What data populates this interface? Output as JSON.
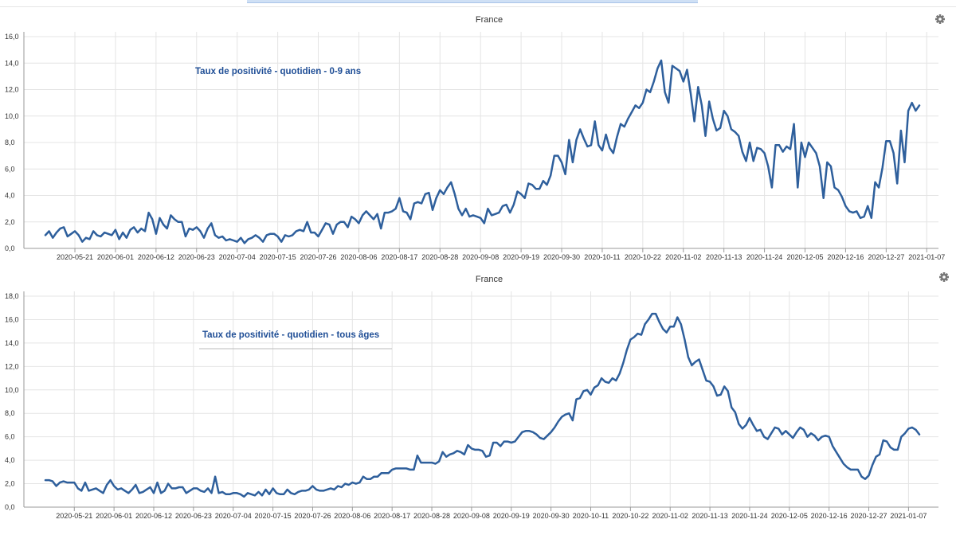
{
  "page": {
    "accent_color": "#2e5f9c",
    "annotation_color": "#1f4e96",
    "grid_color": "#e4e4e4"
  },
  "chart_data": [
    {
      "type": "line",
      "title": "France",
      "annotation": "Taux de positivité - quotidien - 0-9 ans",
      "ylim": [
        0,
        16
      ],
      "y_ticks": [
        "0,0",
        "2,0",
        "4,0",
        "6,0",
        "8,0",
        "10,0",
        "12,0",
        "14,0",
        "16,0"
      ],
      "x_tick_labels": [
        "2020-05-21",
        "2020-06-01",
        "2020-06-12",
        "2020-06-23",
        "2020-07-04",
        "2020-07-15",
        "2020-07-26",
        "2020-08-06",
        "2020-08-17",
        "2020-08-28",
        "2020-09-08",
        "2020-09-19",
        "2020-09-30",
        "2020-10-11",
        "2020-10-22",
        "2020-11-02",
        "2020-11-13",
        "2020-11-24",
        "2020-12-05",
        "2020-12-16",
        "2020-12-27",
        "2021-01-07"
      ],
      "x_start": "2020-05-13",
      "grid": true,
      "settings_icon": "gear-icon",
      "series": [
        {
          "values": [
            1.0,
            1.3,
            0.8,
            1.2,
            1.5,
            1.6,
            0.9,
            1.1,
            1.3,
            1.0,
            0.5,
            0.8,
            0.7,
            1.3,
            1.0,
            0.9,
            1.2,
            1.1,
            1.0,
            1.4,
            0.7,
            1.2,
            0.8,
            1.4,
            1.6,
            1.2,
            1.5,
            1.3,
            2.7,
            2.2,
            1.1,
            2.3,
            1.8,
            1.5,
            2.5,
            2.2,
            2.0,
            2.0,
            0.9,
            1.5,
            1.4,
            1.6,
            1.3,
            0.8,
            1.5,
            1.9,
            1.0,
            0.8,
            0.9,
            0.6,
            0.7,
            0.6,
            0.5,
            0.8,
            0.4,
            0.7,
            0.8,
            1.0,
            0.8,
            0.5,
            1.0,
            1.1,
            1.1,
            0.9,
            0.5,
            1.0,
            0.9,
            1.0,
            1.3,
            1.4,
            1.3,
            2.0,
            1.2,
            1.2,
            0.9,
            1.4,
            1.9,
            1.8,
            1.1,
            1.8,
            2.0,
            2.0,
            1.6,
            2.4,
            2.2,
            1.9,
            2.5,
            2.8,
            2.5,
            2.2,
            2.6,
            1.5,
            2.7,
            2.7,
            2.8,
            3.0,
            3.8,
            2.8,
            2.7,
            2.2,
            3.4,
            3.5,
            3.4,
            4.1,
            4.2,
            2.9,
            3.8,
            4.4,
            4.1,
            4.6,
            5.0,
            4.1,
            3.0,
            2.5,
            3.0,
            2.4,
            2.5,
            2.4,
            2.3,
            1.9,
            3.0,
            2.5,
            2.6,
            2.7,
            3.2,
            3.3,
            2.7,
            3.3,
            4.3,
            4.1,
            3.8,
            4.9,
            4.8,
            4.5,
            4.5,
            5.1,
            4.8,
            5.5,
            7.0,
            7.0,
            6.5,
            5.6,
            8.2,
            6.5,
            8.2,
            9.0,
            8.3,
            7.7,
            7.8,
            9.6,
            7.8,
            7.4,
            8.6,
            7.6,
            7.2,
            8.4,
            9.4,
            9.2,
            9.8,
            10.3,
            10.8,
            10.6,
            11.0,
            12.0,
            11.8,
            12.6,
            13.6,
            14.2,
            11.8,
            11.0,
            13.8,
            13.6,
            13.4,
            12.6,
            13.5,
            11.7,
            9.6,
            12.2,
            10.8,
            8.5,
            11.1,
            9.8,
            8.9,
            9.1,
            10.4,
            10.0,
            9.0,
            8.8,
            8.5,
            7.3,
            6.6,
            8.0,
            6.6,
            7.6,
            7.5,
            7.2,
            6.2,
            4.6,
            7.8,
            7.8,
            7.3,
            7.7,
            7.5,
            9.4,
            4.6,
            8.0,
            6.9,
            8.0,
            7.6,
            7.2,
            6.2,
            3.8,
            6.5,
            6.2,
            4.6,
            4.4,
            3.9,
            3.2,
            2.8,
            2.7,
            2.8,
            2.3,
            2.4,
            3.2,
            2.3,
            5.0,
            4.6,
            6.1,
            8.1,
            8.1,
            7.2,
            4.9,
            8.9,
            6.5,
            10.4,
            11.0,
            10.4,
            10.8
          ]
        }
      ]
    },
    {
      "type": "line",
      "title": "France",
      "annotation": "Taux de positivité - quotidien - tous âges",
      "ylim": [
        0,
        18
      ],
      "y_ticks": [
        "0,0",
        "2,0",
        "4,0",
        "6,0",
        "8,0",
        "10,0",
        "12,0",
        "14,0",
        "16,0",
        "18,0"
      ],
      "x_tick_labels": [
        "2020-05-21",
        "2020-06-01",
        "2020-06-12",
        "2020-06-23",
        "2020-07-04",
        "2020-07-15",
        "2020-07-26",
        "2020-08-06",
        "2020-08-17",
        "2020-08-28",
        "2020-09-08",
        "2020-09-19",
        "2020-09-30",
        "2020-10-11",
        "2020-10-22",
        "2020-11-02",
        "2020-11-13",
        "2020-11-24",
        "2020-12-05",
        "2020-12-16",
        "2020-12-27",
        "2021-01-07"
      ],
      "x_start": "2020-05-13",
      "grid": true,
      "settings_icon": "gear-icon",
      "series": [
        {
          "values": [
            2.3,
            2.3,
            2.2,
            1.8,
            2.1,
            2.2,
            2.1,
            2.1,
            2.1,
            1.6,
            1.4,
            2.1,
            1.4,
            1.5,
            1.6,
            1.4,
            1.2,
            1.9,
            2.3,
            1.8,
            1.5,
            1.6,
            1.4,
            1.2,
            1.5,
            1.9,
            1.2,
            1.3,
            1.5,
            1.7,
            1.2,
            2.1,
            1.2,
            1.4,
            2.0,
            1.6,
            1.6,
            1.7,
            1.7,
            1.2,
            1.4,
            1.6,
            1.6,
            1.4,
            1.3,
            1.6,
            1.2,
            2.6,
            1.2,
            1.3,
            1.1,
            1.1,
            1.2,
            1.2,
            1.1,
            0.9,
            1.2,
            1.1,
            1.0,
            1.3,
            1.0,
            1.5,
            1.1,
            1.6,
            1.2,
            1.1,
            1.1,
            1.5,
            1.2,
            1.1,
            1.3,
            1.4,
            1.4,
            1.5,
            1.8,
            1.5,
            1.4,
            1.4,
            1.5,
            1.6,
            1.5,
            1.8,
            1.7,
            2.0,
            1.9,
            2.1,
            2.0,
            2.1,
            2.6,
            2.4,
            2.4,
            2.6,
            2.6,
            2.9,
            2.9,
            2.9,
            3.2,
            3.3,
            3.3,
            3.3,
            3.3,
            3.2,
            3.2,
            4.4,
            3.8,
            3.8,
            3.8,
            3.8,
            3.7,
            3.9,
            4.7,
            4.3,
            4.5,
            4.6,
            4.8,
            4.7,
            4.5,
            5.3,
            5.0,
            4.9,
            4.9,
            4.8,
            4.3,
            4.4,
            5.5,
            5.5,
            5.2,
            5.6,
            5.6,
            5.5,
            5.6,
            6.0,
            6.4,
            6.5,
            6.5,
            6.4,
            6.2,
            5.9,
            5.8,
            6.1,
            6.4,
            6.8,
            7.3,
            7.7,
            7.9,
            8.0,
            7.4,
            9.2,
            9.3,
            9.9,
            10.0,
            9.6,
            10.2,
            10.4,
            11.0,
            10.7,
            10.6,
            11.0,
            10.8,
            11.4,
            12.3,
            13.4,
            14.3,
            14.5,
            14.8,
            14.7,
            15.6,
            16.0,
            16.5,
            16.5,
            15.8,
            15.2,
            14.9,
            15.4,
            15.4,
            16.2,
            15.6,
            14.3,
            12.8,
            12.1,
            12.4,
            12.6,
            11.7,
            10.8,
            10.7,
            10.3,
            9.5,
            9.6,
            10.3,
            9.9,
            8.5,
            8.1,
            7.1,
            6.7,
            7.0,
            7.6,
            7.0,
            6.5,
            6.6,
            6.0,
            5.8,
            6.3,
            6.8,
            6.7,
            6.2,
            6.5,
            6.2,
            5.9,
            6.4,
            6.8,
            6.6,
            6.0,
            6.3,
            6.1,
            5.7,
            6.0,
            6.1,
            6.0,
            5.2,
            4.7,
            4.2,
            3.7,
            3.4,
            3.2,
            3.2,
            3.2,
            2.6,
            2.4,
            2.7,
            3.6,
            4.3,
            4.5,
            5.7,
            5.6,
            5.1,
            4.9,
            4.9,
            6.0,
            6.3,
            6.7,
            6.8,
            6.6,
            6.2
          ]
        }
      ]
    }
  ]
}
